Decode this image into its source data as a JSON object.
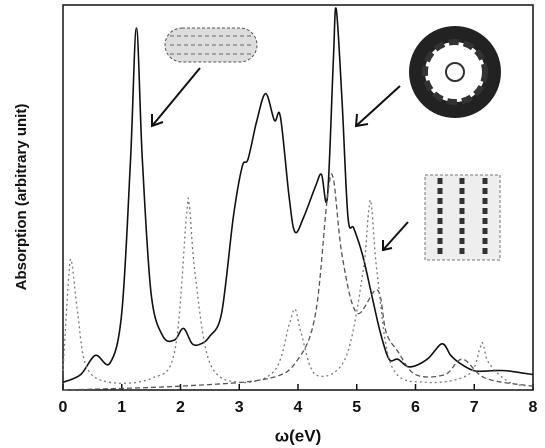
{
  "chart_data": {
    "type": "line",
    "y_label": "Absorption (arbitrary unit)",
    "x_label": "ω(eV)",
    "xlim": [
      0,
      8
    ],
    "xticks": [
      0,
      1,
      2,
      3,
      4,
      5,
      6,
      7,
      8
    ],
    "ylim": [
      0,
      1
    ],
    "series": [
      {
        "color": "#111111",
        "dash": "solid",
        "x": [
          0.0,
          0.3,
          0.55,
          0.8,
          1.0,
          1.15,
          1.25,
          1.35,
          1.5,
          1.7,
          1.9,
          2.05,
          2.2,
          2.35,
          2.5,
          2.7,
          2.9,
          3.05,
          3.15,
          3.3,
          3.45,
          3.6,
          3.7,
          3.85,
          3.95,
          4.1,
          4.3,
          4.4,
          4.5,
          4.6,
          4.65,
          4.75,
          4.85,
          4.95,
          5.1,
          5.25,
          5.4,
          5.55,
          5.7,
          5.9,
          6.2,
          6.45,
          6.6,
          6.75,
          7.0,
          7.3,
          7.55,
          8.0
        ],
        "values": [
          0.02,
          0.04,
          0.09,
          0.07,
          0.2,
          0.6,
          0.94,
          0.6,
          0.25,
          0.14,
          0.13,
          0.16,
          0.12,
          0.12,
          0.14,
          0.2,
          0.45,
          0.58,
          0.6,
          0.7,
          0.77,
          0.7,
          0.71,
          0.5,
          0.41,
          0.45,
          0.53,
          0.56,
          0.5,
          0.85,
          0.99,
          0.75,
          0.45,
          0.42,
          0.35,
          0.25,
          0.15,
          0.08,
          0.08,
          0.06,
          0.08,
          0.12,
          0.09,
          0.07,
          0.05,
          0.05,
          0.05,
          0.04
        ]
      },
      {
        "color": "#555555",
        "dash": "dashed",
        "x": [
          0.0,
          2.0,
          3.5,
          4.0,
          4.3,
          4.5,
          4.6,
          4.75,
          5.0,
          5.35,
          5.5,
          5.7,
          6.0,
          6.5,
          6.8,
          7.2,
          8.0
        ],
        "values": [
          0.0,
          0.01,
          0.03,
          0.08,
          0.2,
          0.5,
          0.55,
          0.35,
          0.2,
          0.26,
          0.15,
          0.1,
          0.04,
          0.04,
          0.08,
          0.03,
          0.01
        ]
      },
      {
        "color": "#777777",
        "dash": "dotted",
        "x": [
          0.0,
          0.1,
          0.15,
          0.25,
          0.4,
          0.8,
          1.5,
          1.9,
          2.1,
          2.15,
          2.25,
          2.5,
          3.0,
          3.6,
          3.85,
          3.95,
          4.05,
          4.3,
          4.8,
          5.1,
          5.2,
          5.25,
          5.35,
          5.6,
          6.2,
          6.9,
          7.1,
          7.15,
          7.25,
          7.6,
          8.0
        ],
        "values": [
          0.05,
          0.3,
          0.33,
          0.2,
          0.06,
          0.02,
          0.03,
          0.1,
          0.45,
          0.48,
          0.3,
          0.07,
          0.02,
          0.05,
          0.17,
          0.21,
          0.15,
          0.04,
          0.08,
          0.3,
          0.46,
          0.48,
          0.3,
          0.06,
          0.02,
          0.04,
          0.11,
          0.12,
          0.07,
          0.02,
          0.01
        ]
      }
    ]
  }
}
